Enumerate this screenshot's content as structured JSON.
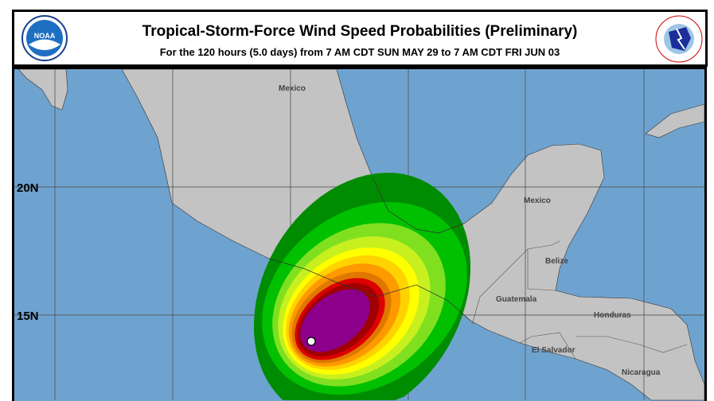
{
  "header": {
    "title": "Tropical-Storm-Force Wind Speed Probabilities (Preliminary)",
    "subtitle": "For the 120 hours (5.0 days) from 7 AM CDT SUN MAY 29 to 7 AM CDT FRI JUN 03",
    "left_logo": "NOAA",
    "right_logo": "NATIONAL WEATHER SERVICE"
  },
  "map": {
    "latitude_labels": [
      "20N",
      "15N"
    ],
    "place_labels": [
      "Mexico",
      "Mexico",
      "Belize",
      "Guatemala",
      "Honduras",
      "El Salvador",
      "Nicaragua"
    ],
    "colors": {
      "ocean": "#6fa3cf",
      "land": "#c3c3c3"
    },
    "probability_colors": [
      "#008c00",
      "#00c000",
      "#80e020",
      "#c8f01e",
      "#ffff00",
      "#ffd200",
      "#ff9900",
      "#e07800",
      "#dc0000",
      "#a00000",
      "#8c008c"
    ],
    "storm_center_marker": "white-dot"
  }
}
